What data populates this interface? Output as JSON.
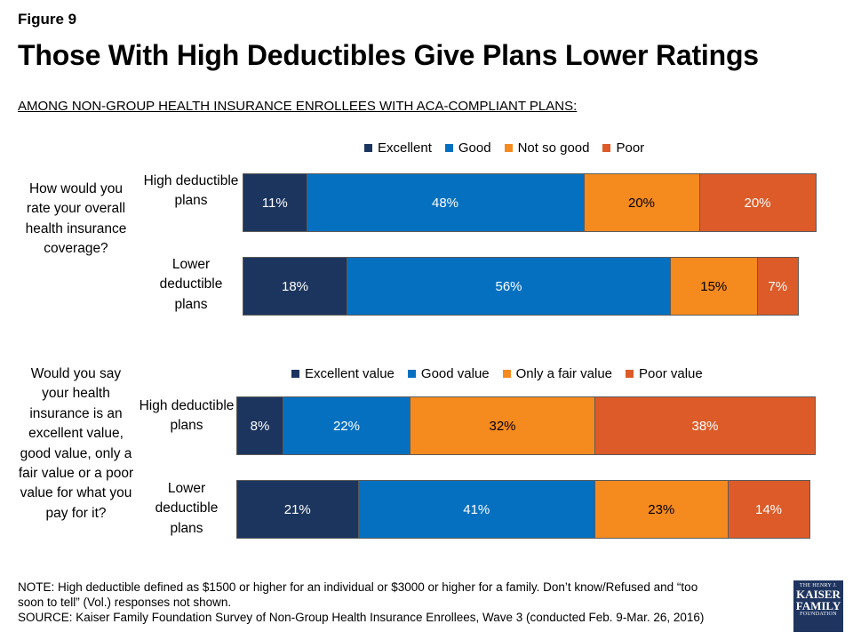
{
  "figure_label": "Figure 9",
  "title": "Those With High Deductibles Give Plans Lower Ratings",
  "subtitle": "AMONG NON-GROUP HEALTH INSURANCE ENROLLEES WITH ACA-COMPLIANT PLANS:",
  "chart_data": [
    {
      "type": "bar",
      "orientation": "horizontal",
      "stacked": true,
      "question": "How would you rate your overall health insurance coverage?",
      "categories": [
        "High deductible plans",
        "Lower deductible plans"
      ],
      "series": [
        {
          "name": "Excellent",
          "color": "#1c355e",
          "values": [
            11,
            18
          ]
        },
        {
          "name": "Good",
          "color": "#0570c0",
          "values": [
            48,
            56
          ]
        },
        {
          "name": "Not so good",
          "color": "#f58a1f",
          "values": [
            20,
            15
          ]
        },
        {
          "name": "Poor",
          "color": "#dc5b28",
          "values": [
            20,
            7
          ]
        }
      ],
      "labels": [
        [
          "11%",
          "48%",
          "20%",
          "20%"
        ],
        [
          "18%",
          "56%",
          "15%",
          "7%"
        ]
      ],
      "legend_position": "top"
    },
    {
      "type": "bar",
      "orientation": "horizontal",
      "stacked": true,
      "question": "Would you say your health insurance is an excellent value, good value, only a fair value or a poor value for what you pay for it?",
      "categories": [
        "High deductible plans",
        "Lower deductible plans"
      ],
      "series": [
        {
          "name": "Excellent value",
          "color": "#1c355e",
          "values": [
            8,
            21
          ]
        },
        {
          "name": "Good value",
          "color": "#0570c0",
          "values": [
            22,
            41
          ]
        },
        {
          "name": "Only a fair value",
          "color": "#f58a1f",
          "values": [
            32,
            23
          ]
        },
        {
          "name": "Poor value",
          "color": "#dc5b28",
          "values": [
            38,
            14
          ]
        }
      ],
      "labels": [
        [
          "8%",
          "22%",
          "32%",
          "38%"
        ],
        [
          "21%",
          "41%",
          "23%",
          "14%"
        ]
      ],
      "legend_position": "top"
    }
  ],
  "note": {
    "line1": "NOTE: High deductible defined as $1500 or higher for an individual or $3000 or higher for a family. Don’t know/Refused and “too",
    "line2": "soon to tell” (Vol.) responses not shown.",
    "source": "SOURCE: Kaiser Family Foundation Survey of Non-Group Health Insurance Enrollees, Wave 3 (conducted Feb. 9-Mar. 26, 2016)"
  },
  "logo": {
    "line1": "THE HENRY J.",
    "line2": "KAISER",
    "line3": "FAMILY",
    "line4": "FOUNDATION"
  },
  "colors": {
    "dark_navy": "#1c355e",
    "blue": "#0570c0",
    "orange": "#f58a1f",
    "red_orange": "#dc5b28"
  }
}
